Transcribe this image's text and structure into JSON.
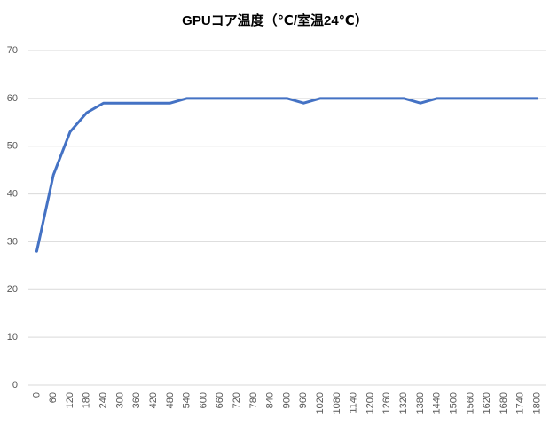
{
  "chart_data": {
    "type": "line",
    "title": "GPUコア温度（℃/室温24℃）",
    "categories": [
      "0",
      "60",
      "120",
      "180",
      "240",
      "300",
      "360",
      "420",
      "480",
      "540",
      "600",
      "660",
      "720",
      "780",
      "840",
      "900",
      "960",
      "1020",
      "1080",
      "1140",
      "1200",
      "1260",
      "1320",
      "1380",
      "1440",
      "1500",
      "1560",
      "1620",
      "1680",
      "1740",
      "1800"
    ],
    "series": [
      {
        "name": "GPUコア温度",
        "color": "#4472c4",
        "values": [
          28,
          44,
          53,
          57,
          59,
          59,
          59,
          59,
          59,
          60,
          60,
          60,
          60,
          60,
          60,
          60,
          59,
          60,
          60,
          60,
          60,
          60,
          60,
          59,
          60,
          60,
          60,
          60,
          60,
          60,
          60
        ]
      }
    ],
    "ylim": [
      0,
      70
    ],
    "yticks": [
      0,
      10,
      20,
      30,
      40,
      50,
      60,
      70
    ],
    "grid": true
  }
}
